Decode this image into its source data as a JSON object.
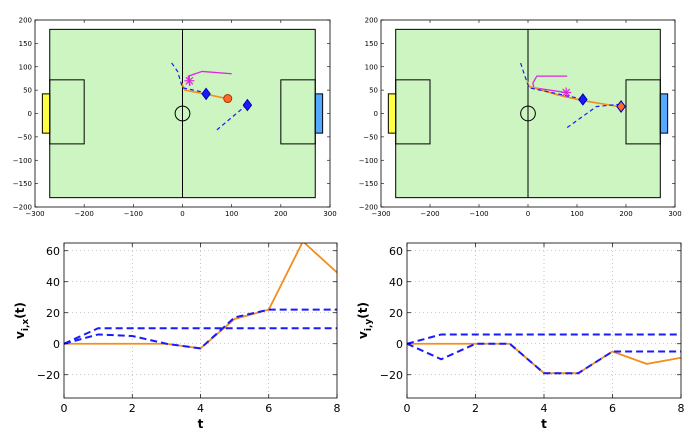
{
  "colors": {
    "field": "#ccf5c2",
    "orange": "#f28e1c",
    "blue": "#1a1aff",
    "navy": "#0000b3",
    "magenta": "#e026e0",
    "yellow_goal": "#ffff44",
    "blue_goal": "#55a8ff",
    "ball_fill": "#ff6a2b",
    "grid": "#999999"
  },
  "chart_data": [
    {
      "type": "scatter",
      "panel": "field-left",
      "xlim": [
        -300,
        300
      ],
      "ylim": [
        -200,
        200
      ],
      "xticks": [
        -300,
        -200,
        -100,
        0,
        100,
        200,
        300
      ],
      "yticks": [
        -200,
        -150,
        -100,
        -50,
        0,
        50,
        100,
        150,
        200
      ],
      "xticklabels": [
        "−300",
        "−200",
        "−100",
        "0",
        "100",
        "200",
        "300"
      ],
      "yticklabels": [
        "−200",
        "−150",
        "−100",
        "−50",
        "0",
        "50",
        "100",
        "150",
        "200"
      ],
      "field": {
        "x": [
          -270,
          270
        ],
        "y": [
          -180,
          180
        ],
        "center_circle_r": 15,
        "penalty_left": [
          -270,
          -200,
          -65,
          72
        ],
        "penalty_right": [
          200,
          270,
          -65,
          72
        ],
        "goal_left": [
          -285,
          -270,
          -42,
          42
        ],
        "goal_right": [
          270,
          285,
          -42,
          42
        ]
      },
      "series": [
        {
          "role": "magenta-path",
          "x": [
            16,
            12,
            12,
            40,
            100
          ],
          "y": [
            60,
            70,
            80,
            90,
            85
          ]
        },
        {
          "role": "orange-path",
          "x": [
            -2,
            5,
            45,
            90
          ],
          "y": [
            65,
            50,
            42,
            32
          ]
        },
        {
          "role": "blue-dashed-1",
          "x": [
            -22,
            -10,
            0,
            45
          ],
          "y": [
            108,
            90,
            55,
            45
          ]
        },
        {
          "role": "blue-dashed-2",
          "x": [
            70,
            130
          ],
          "y": [
            -35,
            18
          ]
        }
      ],
      "markers": [
        {
          "kind": "star",
          "x": 14,
          "y": 70
        },
        {
          "kind": "diamond",
          "x": 48,
          "y": 42
        },
        {
          "kind": "diamond",
          "x": 132,
          "y": 18
        },
        {
          "kind": "ball",
          "x": 92,
          "y": 32
        }
      ]
    },
    {
      "type": "scatter",
      "panel": "field-right",
      "xlim": [
        -300,
        300
      ],
      "ylim": [
        -200,
        200
      ],
      "xticks": [
        -300,
        -200,
        -100,
        0,
        100,
        200,
        300
      ],
      "yticks": [
        -200,
        -150,
        -100,
        -50,
        0,
        50,
        100,
        150,
        200
      ],
      "xticklabels": [
        "−300",
        "−200",
        "−100",
        "0",
        "100",
        "200",
        "300"
      ],
      "yticklabels": [
        "−200",
        "−150",
        "−100",
        "−50",
        "0",
        "50",
        "100",
        "150",
        "200"
      ],
      "field": {
        "x": [
          -270,
          270
        ],
        "y": [
          -180,
          180
        ],
        "center_circle_r": 15,
        "penalty_left": [
          -270,
          -200,
          -65,
          72
        ],
        "penalty_right": [
          200,
          270,
          -65,
          72
        ],
        "goal_left": [
          -285,
          -270,
          -42,
          42
        ],
        "goal_right": [
          270,
          285,
          -42,
          42
        ]
      },
      "series": [
        {
          "role": "magenta-path",
          "x": [
            78,
            12,
            10,
            18,
            80
          ],
          "y": [
            45,
            55,
            65,
            80,
            80
          ]
        },
        {
          "role": "orange-path",
          "x": [
            -2,
            2,
            60,
            110,
            185
          ],
          "y": [
            70,
            58,
            40,
            28,
            15
          ]
        },
        {
          "role": "blue-dashed-1",
          "x": [
            -15,
            -8,
            2,
            115
          ],
          "y": [
            108,
            85,
            55,
            30
          ]
        },
        {
          "role": "blue-dashed-2",
          "x": [
            80,
            140,
            190
          ],
          "y": [
            -30,
            15,
            20
          ]
        }
      ],
      "markers": [
        {
          "kind": "star",
          "x": 78,
          "y": 45
        },
        {
          "kind": "diamond",
          "x": 112,
          "y": 30
        },
        {
          "kind": "diamond",
          "x": 190,
          "y": 15
        },
        {
          "kind": "ball",
          "x": 190,
          "y": 15
        }
      ]
    },
    {
      "type": "line",
      "panel": "vx",
      "ylabel": "v",
      "ylabel_sub": "i,x",
      "ylabel_suffix": "(t)",
      "xlabel": "t",
      "xlim": [
        0,
        8
      ],
      "ylim": [
        -35,
        65
      ],
      "xticks": [
        0,
        2,
        4,
        6,
        8
      ],
      "yticks": [
        -20,
        0,
        20,
        40,
        60
      ],
      "grid": true,
      "series": [
        {
          "style": "orange-solid",
          "x": [
            0,
            1,
            2,
            3,
            4,
            5,
            6,
            7,
            8
          ],
          "y": [
            0,
            0,
            0,
            0,
            -3,
            16,
            22,
            66,
            46
          ]
        },
        {
          "style": "blue-dashed",
          "x": [
            0,
            1,
            2,
            3,
            4,
            5,
            6,
            7,
            8
          ],
          "y": [
            0,
            6,
            5,
            0,
            -3,
            17,
            22,
            22,
            22
          ]
        },
        {
          "style": "blue-dashed",
          "x": [
            0,
            1,
            2,
            3,
            4,
            5,
            6,
            7,
            8
          ],
          "y": [
            0,
            10,
            10,
            10,
            10,
            10,
            10,
            10,
            10
          ]
        }
      ]
    },
    {
      "type": "line",
      "panel": "vy",
      "ylabel": "v",
      "ylabel_sub": "i,y",
      "ylabel_suffix": "(t)",
      "xlabel": "t",
      "xlim": [
        0,
        8
      ],
      "ylim": [
        -35,
        65
      ],
      "xticks": [
        0,
        2,
        4,
        6,
        8
      ],
      "yticks": [
        -20,
        0,
        20,
        40,
        60
      ],
      "grid": true,
      "series": [
        {
          "style": "orange-solid",
          "x": [
            0,
            1,
            2,
            3,
            4,
            5,
            6,
            7,
            8
          ],
          "y": [
            0,
            0,
            0,
            0,
            -19,
            -19,
            -5,
            -13,
            -9
          ]
        },
        {
          "style": "blue-dashed",
          "x": [
            0,
            1,
            2,
            3,
            4,
            5,
            6,
            7,
            8
          ],
          "y": [
            0,
            -10,
            0,
            0,
            -19,
            -19,
            -5,
            -5,
            -5
          ]
        },
        {
          "style": "blue-dashed",
          "x": [
            0,
            1,
            2,
            3,
            4,
            5,
            6,
            7,
            8
          ],
          "y": [
            0,
            6,
            6,
            6,
            6,
            6,
            6,
            6,
            6
          ]
        }
      ]
    }
  ]
}
